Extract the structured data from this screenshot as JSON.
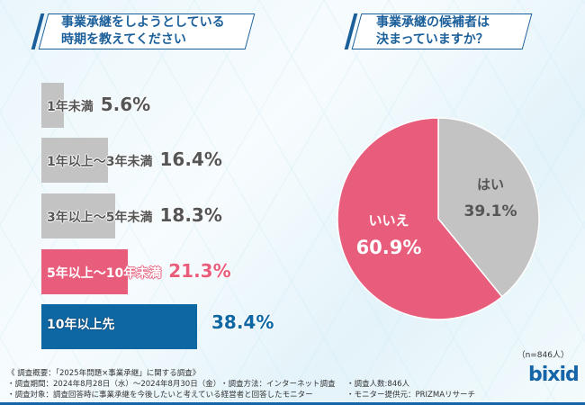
{
  "left_title": [
    "事業承継をしようとしている",
    "時期を教えてください"
  ],
  "right_title": [
    "事業承継の候補者は",
    "決まっていますか？"
  ],
  "chart_data": [
    {
      "type": "bar",
      "orientation": "horizontal",
      "categories": [
        "1年未満",
        "1年以上～3年未満",
        "3年以上～5年未満",
        "5年以上～10年未満",
        "10年以上先"
      ],
      "values": [
        5.6,
        16.4,
        18.3,
        21.3,
        38.4
      ],
      "value_labels": [
        "5.6%",
        "16.4%",
        "18.3%",
        "21.3%",
        "38.4%"
      ],
      "colors": [
        "#c3c3c3",
        "#c3c3c3",
        "#c3c3c3",
        "#e85d7c",
        "#0d67a3"
      ]
    },
    {
      "type": "pie",
      "categories": [
        "はい",
        "いいえ"
      ],
      "values": [
        39.1,
        60.9
      ],
      "value_labels": [
        "39.1%",
        "60.9%"
      ],
      "colors": [
        "#c3c3c3",
        "#e85d7c"
      ]
    }
  ],
  "sample": "（n=846人）",
  "footer": {
    "overview": "《 調査概要：「2025年問題×事業承継」に関する調査》",
    "period": "・調査期間：2024年8月28日（水）～2024年8月30日（金）",
    "method": "・調査方法：インターネット調査",
    "count": "・調査人数:846人",
    "target": "・調査対象：調査回答時に事業承継を今後したいと考えている経営者と回答したモニター",
    "provider": "・モニター提供元：PRIZMAリサーチ"
  },
  "logo": "bixid"
}
